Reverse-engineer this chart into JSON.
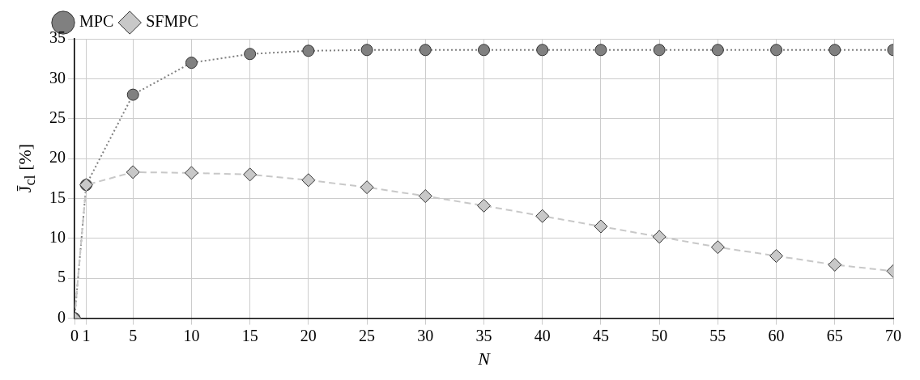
{
  "chart_data": {
    "type": "line",
    "xlabel": "N",
    "ylabel": "J̄$_{cl}$ [%]",
    "xlim": [
      0,
      70
    ],
    "xticks": [
      0,
      1,
      5,
      10,
      15,
      20,
      25,
      30,
      35,
      40,
      45,
      50,
      55,
      60,
      65,
      70
    ],
    "ylim": [
      0,
      35
    ],
    "yticks": [
      0,
      5,
      10,
      15,
      20,
      25,
      30,
      35
    ],
    "grid": true,
    "legend": "top left",
    "x": [
      0,
      1,
      5,
      10,
      15,
      20,
      25,
      30,
      35,
      40,
      45,
      50,
      55,
      60,
      65,
      70
    ],
    "series": [
      {
        "name": "MPC",
        "color": "#808080",
        "marker": "circle",
        "line_style": "dotted",
        "values": [
          0,
          16.7,
          28,
          32,
          33.1,
          33.5,
          33.6,
          33.6,
          33.6,
          33.6,
          33.6,
          33.6,
          33.6,
          33.6,
          33.6,
          33.6
        ]
      },
      {
        "name": "SFMPC",
        "color": "#c8c8c8",
        "marker": "diamond",
        "line_style": "dashed",
        "values": [
          0,
          16.7,
          18.3,
          18.2,
          18.0,
          17.3,
          16.4,
          15.3,
          14.1,
          12.8,
          11.5,
          10.2,
          8.9,
          7.8,
          6.7,
          5.9
        ]
      }
    ]
  }
}
